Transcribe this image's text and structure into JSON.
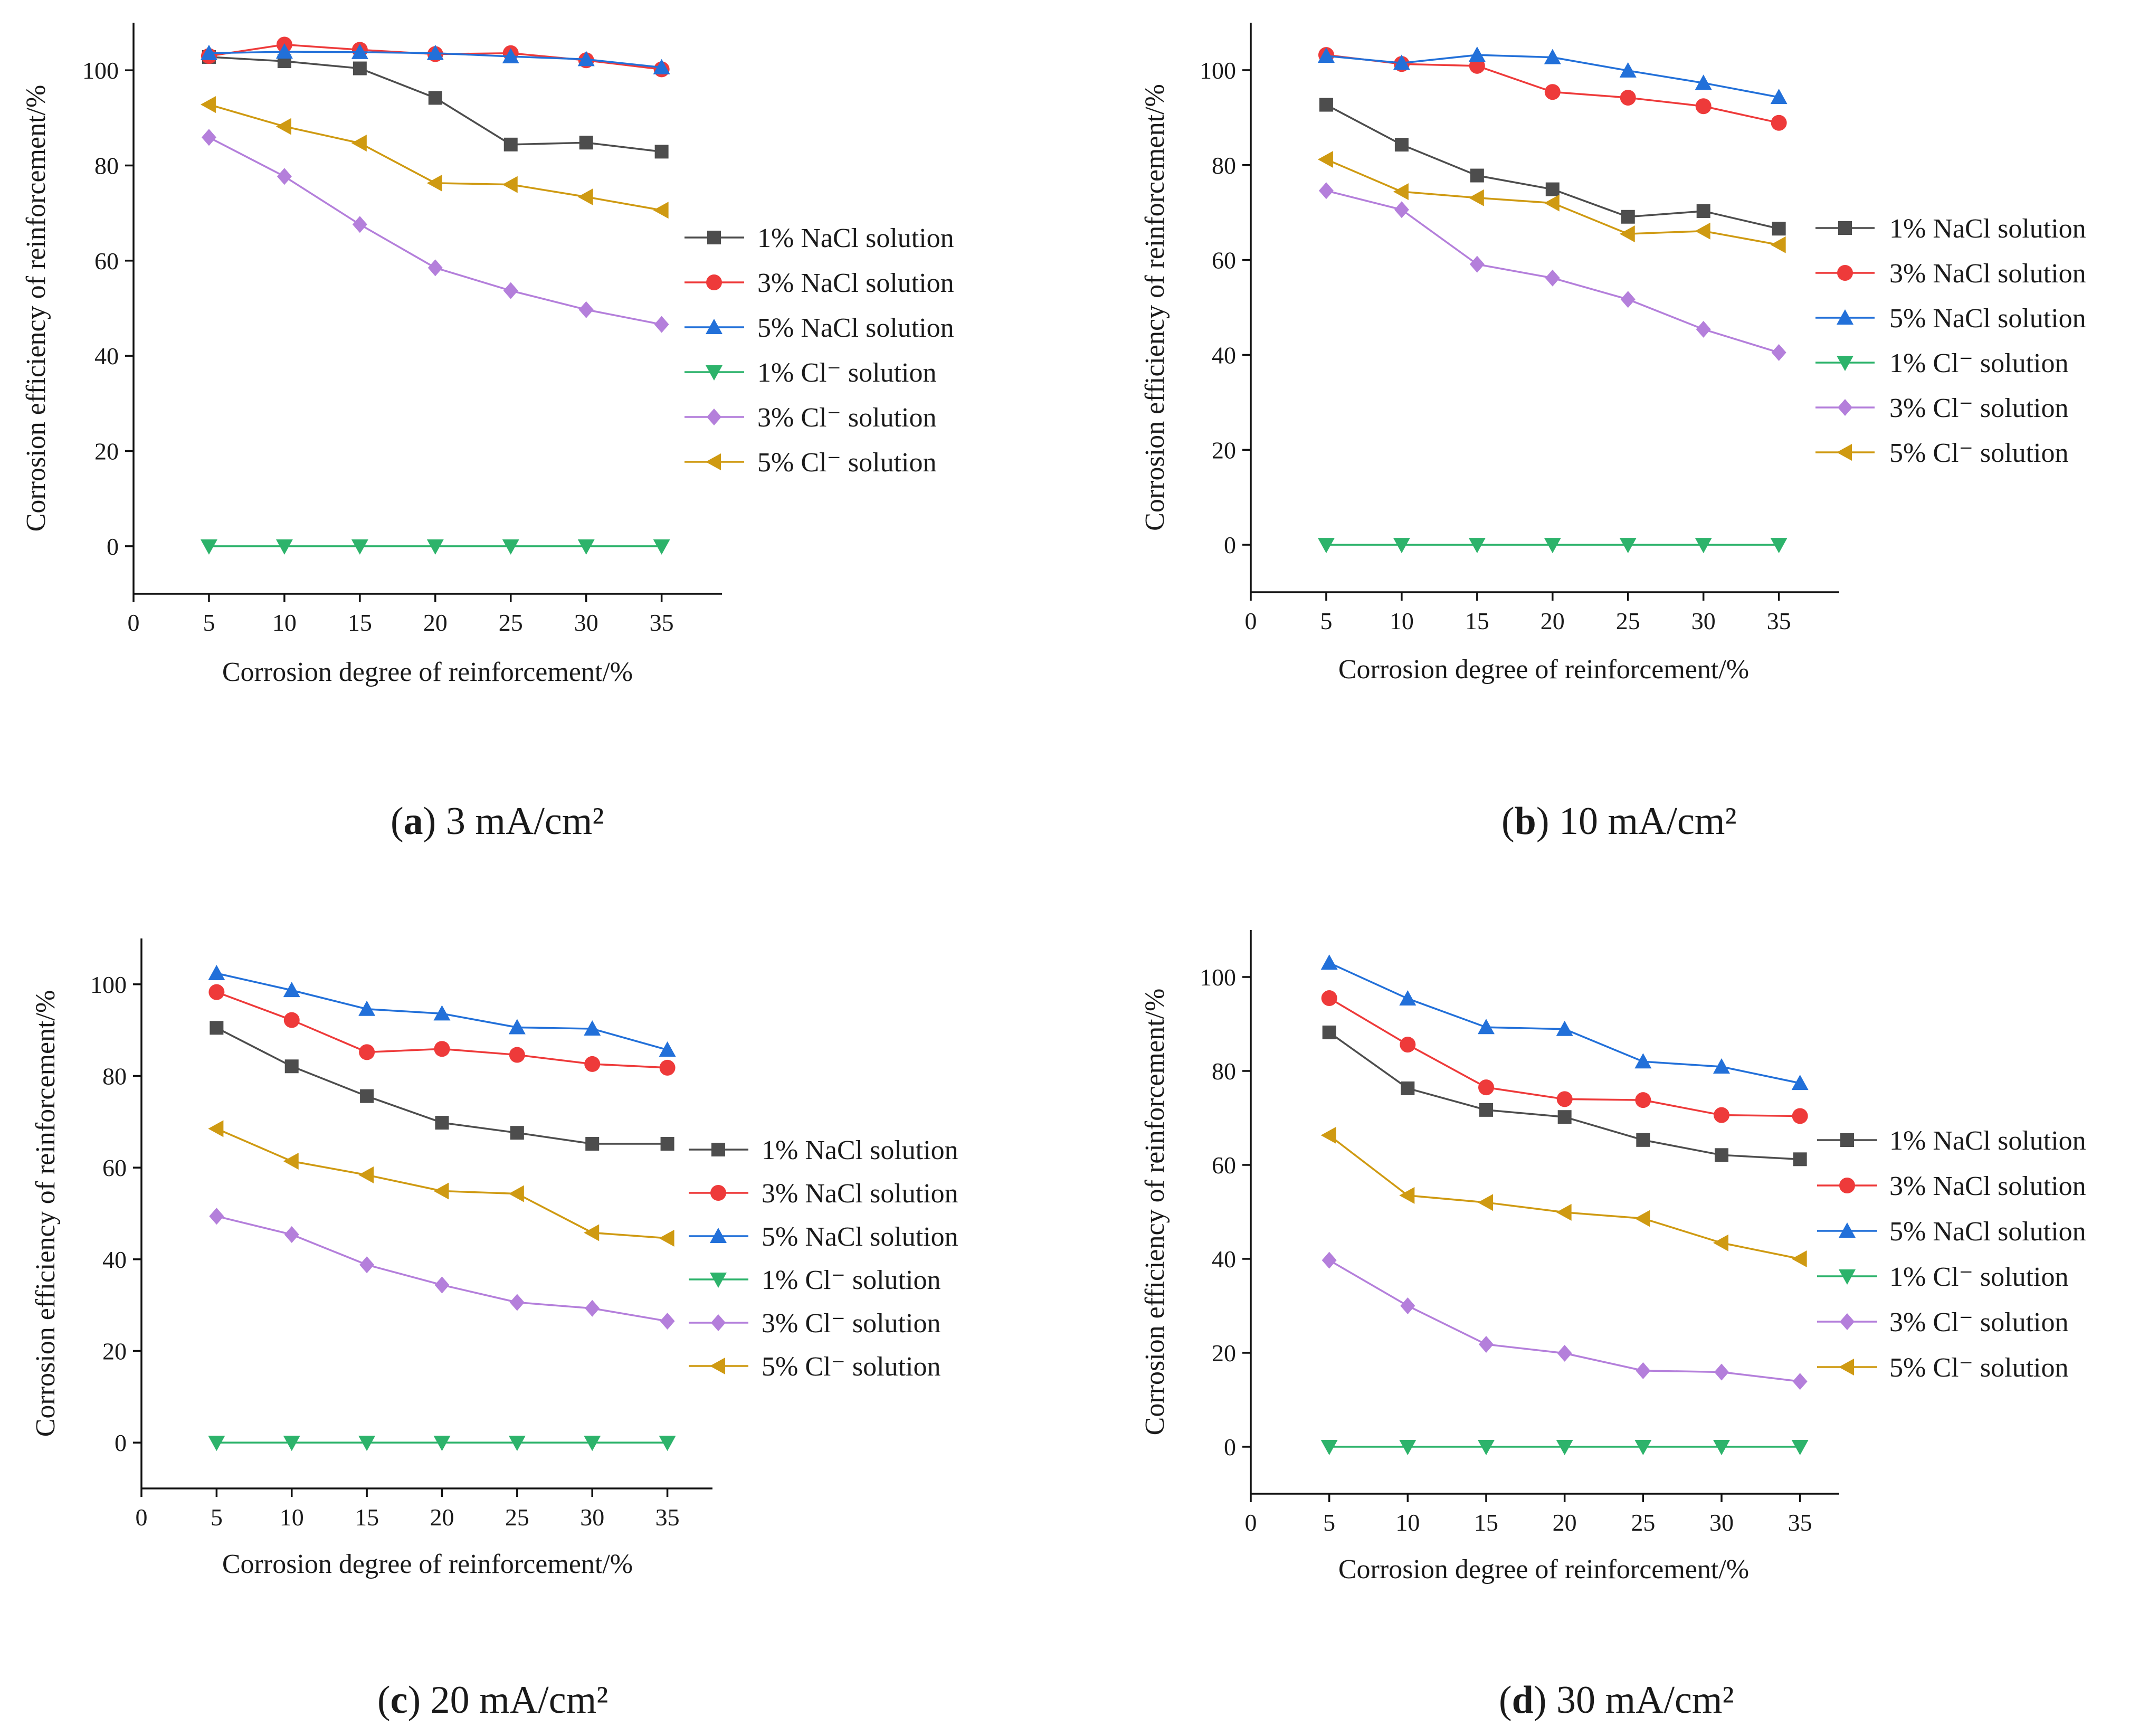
{
  "figure": {
    "panels": [
      {
        "caption_letter": "a",
        "caption_text": " 3 mA/cm²",
        "chart_data": {
          "type": "line",
          "title": "(a) 3 mA/cm²",
          "xlabel": "Corrosion degree of reinforcement/%",
          "ylabel": "Corrosion efficiency of reinforcement/%",
          "x": [
            5,
            10,
            15,
            20,
            25,
            30,
            35
          ],
          "xticks": [
            0,
            5,
            10,
            15,
            20,
            25,
            30,
            35
          ],
          "yticks": [
            0,
            20,
            40,
            60,
            80,
            100
          ],
          "xlim": [
            0,
            39
          ],
          "ylim": [
            -10,
            110
          ],
          "grid": false,
          "legend_position": "right",
          "series": [
            {
              "name": "1% NaCl solution",
              "values": [
                102.8,
                101.9,
                100.4,
                94.2,
                84.4,
                84.8,
                82.9
              ]
            },
            {
              "name": "3% NaCl solution",
              "values": [
                103.0,
                105.4,
                104.3,
                103.4,
                103.6,
                102.1,
                100.2
              ]
            },
            {
              "name": "5% NaCl solution",
              "values": [
                103.6,
                103.9,
                103.8,
                103.6,
                102.9,
                102.3,
                100.6
              ]
            },
            {
              "name": "1%   Cl⁻  solution",
              "values": [
                0,
                0,
                0,
                0,
                0,
                0,
                0
              ]
            },
            {
              "name": "3%   Cl⁻  solution",
              "values": [
                85.9,
                77.7,
                67.6,
                58.5,
                53.7,
                49.7,
                46.6
              ]
            },
            {
              "name": "5%   Cl⁻  solution",
              "values": [
                92.8,
                88.2,
                84.7,
                76.3,
                76.0,
                73.4,
                70.6
              ]
            }
          ]
        }
      },
      {
        "caption_letter": "b",
        "caption_text": " 10 mA/cm²",
        "chart_data": {
          "type": "line",
          "title": "(b) 10 mA/cm²",
          "xlabel": "Corrosion degree of reinforcement/%",
          "ylabel": "Corrosion efficiency of reinforcement/%",
          "x": [
            5,
            10,
            15,
            20,
            25,
            30,
            35
          ],
          "xticks": [
            0,
            5,
            10,
            15,
            20,
            25,
            30,
            35
          ],
          "yticks": [
            0,
            20,
            40,
            60,
            80,
            100
          ],
          "xlim": [
            0,
            39
          ],
          "ylim": [
            -10,
            110
          ],
          "grid": false,
          "legend_position": "right",
          "series": [
            {
              "name": "1% NaCl solution",
              "values": [
                92.7,
                84.3,
                77.8,
                74.9,
                69.1,
                70.3,
                66.6
              ]
            },
            {
              "name": "3% NaCl solution",
              "values": [
                103.2,
                101.3,
                100.9,
                95.4,
                94.2,
                92.4,
                88.9
              ]
            },
            {
              "name": "5% NaCl solution",
              "values": [
                103.0,
                101.5,
                103.2,
                102.7,
                99.9,
                97.3,
                94.3
              ]
            },
            {
              "name": "1%   Cl⁻  solution",
              "values": [
                0,
                0,
                0,
                0,
                0,
                0,
                0
              ]
            },
            {
              "name": "3%   Cl⁻  solution",
              "values": [
                74.6,
                70.6,
                59.1,
                56.2,
                51.7,
                45.4,
                40.5
              ]
            },
            {
              "name": "5%   Cl⁻  solution",
              "values": [
                81.2,
                74.4,
                73.1,
                72.0,
                65.5,
                66.1,
                63.2
              ]
            }
          ]
        }
      },
      {
        "caption_letter": "c",
        "caption_text": " 20 mA/cm²",
        "chart_data": {
          "type": "line",
          "title": "(c) 20 mA/cm²",
          "xlabel": "Corrosion degree of reinforcement/%",
          "ylabel": "Corrosion efficiency of reinforcement/%",
          "x": [
            5,
            10,
            15,
            20,
            25,
            30,
            35
          ],
          "xticks": [
            0,
            5,
            10,
            15,
            20,
            25,
            30,
            35
          ],
          "yticks": [
            0,
            20,
            40,
            60,
            80,
            100
          ],
          "xlim": [
            0,
            38
          ],
          "ylim": [
            -10,
            110
          ],
          "grid": false,
          "legend_position": "right",
          "series": [
            {
              "name": "1% NaCl solution",
              "values": [
                90.5,
                82.1,
                75.6,
                69.8,
                67.6,
                65.2,
                65.2
              ]
            },
            {
              "name": "3% NaCl solution",
              "values": [
                98.3,
                92.2,
                85.2,
                85.9,
                84.6,
                82.6,
                81.8
              ]
            },
            {
              "name": "5% NaCl solution",
              "values": [
                102.4,
                98.7,
                94.6,
                93.6,
                90.6,
                90.3,
                85.7
              ]
            },
            {
              "name": "1%   Cl⁻  solution",
              "values": [
                0,
                0,
                0,
                0,
                0,
                0,
                0
              ]
            },
            {
              "name": "3%   Cl⁻  solution",
              "values": [
                49.4,
                45.4,
                38.8,
                34.4,
                30.6,
                29.3,
                26.5
              ]
            },
            {
              "name": "5%   Cl⁻  solution",
              "values": [
                68.5,
                61.4,
                58.4,
                54.9,
                54.3,
                45.8,
                44.6
              ]
            }
          ]
        }
      },
      {
        "caption_letter": "d",
        "caption_text": " 30 mA/cm²",
        "chart_data": {
          "type": "line",
          "title": "(d) 30 mA/cm²",
          "xlabel": "Corrosion degree of reinforcement/%",
          "ylabel": "Corrosion efficiency of reinforcement/%",
          "x": [
            5,
            10,
            15,
            20,
            25,
            30,
            35
          ],
          "xticks": [
            0,
            5,
            10,
            15,
            20,
            25,
            30,
            35
          ],
          "yticks": [
            0,
            20,
            40,
            60,
            80,
            100
          ],
          "xlim": [
            0,
            37.5
          ],
          "ylim": [
            -10,
            110
          ],
          "grid": false,
          "legend_position": "right",
          "series": [
            {
              "name": "1% NaCl solution",
              "values": [
                88.2,
                76.3,
                71.7,
                70.2,
                65.3,
                62.1,
                61.2
              ]
            },
            {
              "name": "3% NaCl solution",
              "values": [
                95.5,
                85.6,
                76.5,
                74.0,
                73.8,
                70.6,
                70.4
              ]
            },
            {
              "name": "5% NaCl solution",
              "values": [
                103.0,
                95.4,
                89.3,
                88.9,
                82.0,
                80.9,
                77.4
              ]
            },
            {
              "name": "1%  Cl⁻  solution",
              "values": [
                0,
                0,
                0,
                0,
                0,
                0,
                0
              ]
            },
            {
              "name": "3%  Cl⁻  solution",
              "values": [
                39.7,
                30.0,
                21.8,
                19.9,
                16.2,
                15.9,
                13.9
              ]
            },
            {
              "name": "5%  Cl⁻  solution",
              "values": [
                66.3,
                53.5,
                52.0,
                49.9,
                48.6,
                43.4,
                40.0
              ]
            }
          ]
        }
      }
    ]
  },
  "styles": {
    "series_colors": [
      "#4d4d4d",
      "#ee3a3a",
      "#2270d9",
      "#2db36b",
      "#b47fdb",
      "#cf9a12"
    ],
    "series_markers": [
      "square",
      "circle",
      "triangle-up",
      "triangle-down",
      "diamond",
      "triangle-left"
    ],
    "line_color_note": "lines drawn in series colors"
  }
}
